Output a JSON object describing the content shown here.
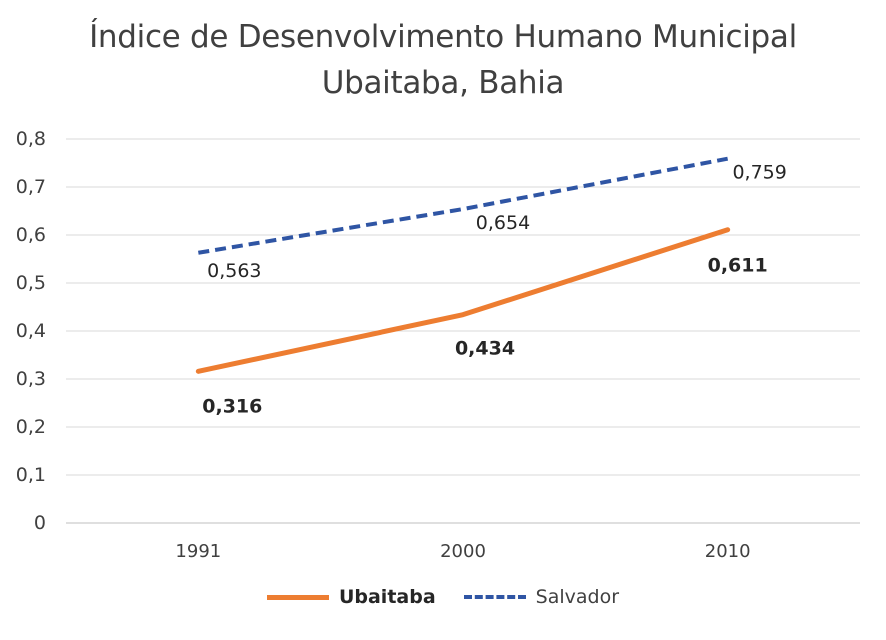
{
  "chart_data": {
    "type": "line",
    "title": "Índice de Desenvolvimento Humano Municipal",
    "subtitle": "Ubaitaba, Bahia",
    "xlabel": "",
    "ylabel": "",
    "categories": [
      "1991",
      "2000",
      "2010"
    ],
    "ylim": [
      0,
      0.8
    ],
    "yticks": [
      "0",
      "0,1",
      "0,2",
      "0,3",
      "0,4",
      "0,5",
      "0,6",
      "0,7",
      "0,8"
    ],
    "grid": true,
    "legend_position": "bottom",
    "series": [
      {
        "name": "Ubaitaba",
        "values": [
          0.316,
          0.434,
          0.611
        ],
        "labels": [
          "0,316",
          "0,434",
          "0,611"
        ],
        "color": "#ED7D31",
        "style": "solid"
      },
      {
        "name": "Salvador",
        "values": [
          0.563,
          0.654,
          0.759
        ],
        "labels": [
          "0,563",
          "0,654",
          "0,759"
        ],
        "color": "#2F55A4",
        "style": "dashed"
      }
    ]
  }
}
